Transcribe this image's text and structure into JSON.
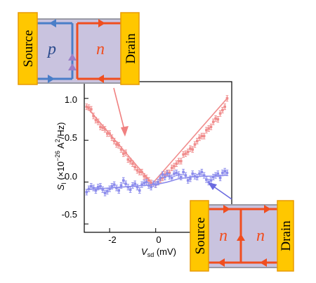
{
  "chart_data": {
    "type": "scatter",
    "xlabel": {
      "symbol": "V",
      "sub": "sd",
      "unit": " (mV)"
    },
    "ylabel": {
      "symbol": "S",
      "sub": "I",
      "pre": " (×10",
      "exp": "−26",
      "mid": " A",
      "exp2": "2",
      "post": "/Hz)"
    },
    "xlim": [
      -3.1,
      3.3
    ],
    "ylim": [
      -0.6,
      1.2
    ],
    "x_ticks": [
      -2,
      0,
      2
    ],
    "y_ticks": [
      1.0,
      0.5,
      0.0,
      -0.5
    ],
    "x_tick_labels": [
      "-2",
      "0",
      "2"
    ],
    "y_tick_labels": [
      "1.0",
      "0.5",
      "0.0",
      "-0.5"
    ],
    "series": [
      {
        "color": "#f08c8c",
        "x": [
          -3.0,
          -2.9,
          -2.8,
          -2.7,
          -2.6,
          -2.5,
          -2.4,
          -2.3,
          -2.2,
          -2.1,
          -2.0,
          -1.9,
          -1.8,
          -1.7,
          -1.6,
          -1.5,
          -1.4,
          -1.3,
          -1.2,
          -1.1,
          -1.0,
          -0.9,
          -0.8,
          -0.7,
          -0.6,
          -0.5,
          -0.4,
          -0.3,
          -0.2,
          -0.1,
          0.0,
          0.1,
          0.2,
          0.3,
          0.4,
          0.5,
          0.6,
          0.7,
          0.8,
          0.9,
          1.0,
          1.1,
          1.2,
          1.3,
          1.4,
          1.5,
          1.6,
          1.7,
          1.8,
          1.9,
          2.0,
          2.1,
          2.2,
          2.3,
          2.4,
          2.5,
          2.6,
          2.7,
          2.8,
          2.9,
          3.0,
          3.1
        ],
        "y": [
          0.9,
          0.89,
          0.87,
          0.79,
          0.74,
          0.72,
          0.66,
          0.65,
          0.63,
          0.58,
          0.58,
          0.53,
          0.49,
          0.45,
          0.44,
          0.39,
          0.34,
          0.35,
          0.27,
          0.25,
          0.22,
          0.18,
          0.14,
          0.12,
          0.12,
          0.07,
          0.05,
          0.02,
          -0.01,
          -0.02,
          -0.03,
          0.0,
          0.03,
          0.05,
          0.09,
          0.11,
          0.11,
          0.17,
          0.19,
          0.22,
          0.25,
          0.25,
          0.33,
          0.34,
          0.36,
          0.4,
          0.39,
          0.45,
          0.49,
          0.53,
          0.55,
          0.55,
          0.62,
          0.64,
          0.66,
          0.72,
          0.76,
          0.75,
          0.82,
          0.86,
          0.9,
          1.0
        ],
        "fit_x": [
          -3.0,
          -0.15,
          3.1
        ],
        "fit_y": [
          0.9,
          -0.02,
          1.0
        ]
      },
      {
        "color": "#8c8cec",
        "x": [
          -3.0,
          -2.9,
          -2.8,
          -2.7,
          -2.6,
          -2.5,
          -2.4,
          -2.3,
          -2.2,
          -2.1,
          -2.0,
          -1.9,
          -1.8,
          -1.7,
          -1.6,
          -1.5,
          -1.4,
          -1.3,
          -1.2,
          -1.1,
          -1.0,
          -0.9,
          -0.8,
          -0.7,
          -0.6,
          -0.5,
          -0.4,
          -0.3,
          -0.2,
          -0.1,
          0.0,
          0.1,
          0.2,
          0.3,
          0.4,
          0.5,
          0.6,
          0.7,
          0.8,
          0.9,
          1.0,
          1.1,
          1.2,
          1.3,
          1.4,
          1.5,
          1.6,
          1.7,
          1.8,
          1.9,
          2.0,
          2.1,
          2.2,
          2.3,
          2.4,
          2.5,
          2.6,
          2.7,
          2.8,
          2.9,
          3.0,
          3.1
        ],
        "y": [
          -0.12,
          -0.08,
          -0.05,
          -0.07,
          -0.1,
          -0.06,
          -0.05,
          -0.09,
          -0.13,
          -0.11,
          -0.08,
          -0.05,
          -0.03,
          -0.07,
          -0.1,
          -0.04,
          0.02,
          -0.02,
          -0.06,
          -0.09,
          -0.04,
          -0.02,
          -0.06,
          -0.1,
          -0.03,
          -0.01,
          0.0,
          -0.04,
          -0.06,
          -0.02,
          -0.03,
          0.0,
          0.05,
          0.09,
          0.06,
          0.1,
          0.07,
          0.05,
          0.1,
          0.11,
          0.09,
          0.06,
          0.12,
          0.08,
          0.02,
          0.04,
          0.1,
          0.07,
          0.06,
          0.1,
          0.12,
          0.08,
          0.03,
          0.0,
          0.02,
          0.06,
          0.08,
          0.1,
          0.05,
          0.11,
          0.13,
          0.11
        ],
        "fit_x": [
          -3.0,
          -2.5,
          -2.0,
          -1.5,
          -1.0,
          -0.5,
          0.0,
          0.5,
          1.0,
          1.5,
          2.0,
          2.5,
          3.0,
          3.1
        ],
        "fit_y": [
          -0.09,
          -0.08,
          -0.07,
          -0.06,
          -0.05,
          -0.04,
          -0.03,
          0.0,
          0.04,
          0.06,
          0.07,
          0.07,
          0.08,
          0.08
        ]
      }
    ]
  },
  "insets": {
    "top": {
      "source": "Source",
      "drain": "Drain",
      "left_region": "p",
      "right_region": "n"
    },
    "bottom": {
      "source": "Source",
      "drain": "Drain",
      "left_region": "n",
      "right_region": "n"
    }
  },
  "colors": {
    "contact": "#ffc700",
    "contact_edge": "#e89a00",
    "region": "#c9c3df",
    "edge_orange": "#f04e1f",
    "edge_blue": "#4a7ec8",
    "border_gray": "#9a9aa6",
    "pointer_red": "#f08080",
    "pointer_blue": "#6a6ae0"
  }
}
